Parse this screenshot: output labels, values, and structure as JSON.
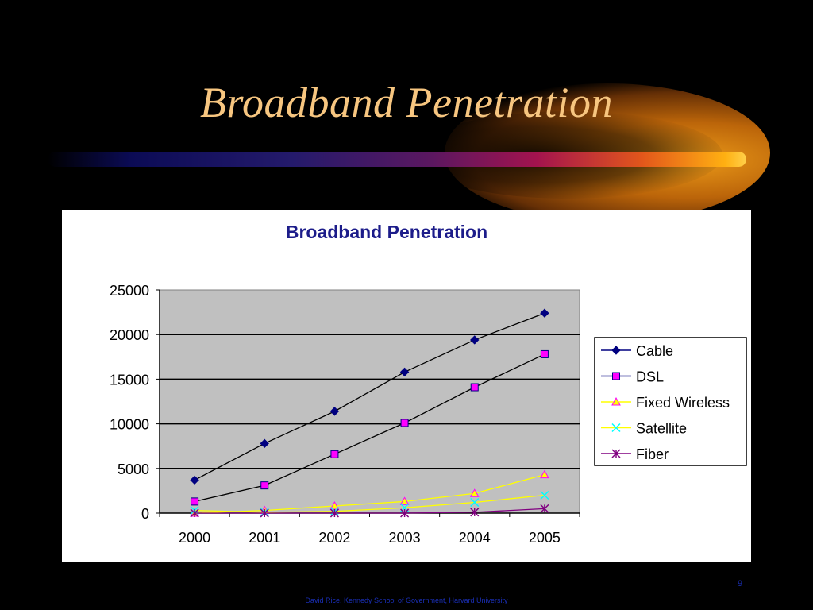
{
  "slide": {
    "title": "Broadband Penetration",
    "footer": "David Rice, Kennedy School of Government, Harvard University",
    "number": "9"
  },
  "colors": {
    "background": "#000000",
    "title": "#f7c680",
    "chart_title": "#1c1c8a",
    "plot_area": "#c0c0c0",
    "footer": "#1a2fb8"
  },
  "chart_data": {
    "type": "line",
    "title": "Broadband Penetration",
    "xlabel": "",
    "ylabel": "",
    "categories": [
      "2000",
      "2001",
      "2002",
      "2003",
      "2004",
      "2005"
    ],
    "ylim": [
      0,
      25000
    ],
    "yticks": [
      "0",
      "5000",
      "10000",
      "15000",
      "20000",
      "25000"
    ],
    "grid": true,
    "legend_position": "right",
    "series": [
      {
        "name": "Cable",
        "color": "#000080",
        "line": "#000000",
        "marker": "diamond",
        "values": [
          3700,
          7800,
          11400,
          15800,
          19400,
          22400
        ]
      },
      {
        "name": "DSL",
        "color": "#ff00ff",
        "line": "#000000",
        "marker": "square",
        "values": [
          1300,
          3100,
          6600,
          10100,
          14100,
          17800
        ]
      },
      {
        "name": "Fixed Wireless",
        "color": "#ffff00",
        "line": "#ffff00",
        "marker": "triangle",
        "values": [
          0,
          300,
          800,
          1300,
          2200,
          4300
        ]
      },
      {
        "name": "Satellite",
        "color": "#00ffff",
        "line": "#ffff00",
        "marker": "x",
        "values": [
          300,
          100,
          200,
          600,
          1200,
          2000
        ]
      },
      {
        "name": "Fiber",
        "color": "#800080",
        "line": "#800080",
        "marker": "star",
        "values": [
          0,
          0,
          0,
          0,
          100,
          500
        ]
      }
    ]
  }
}
